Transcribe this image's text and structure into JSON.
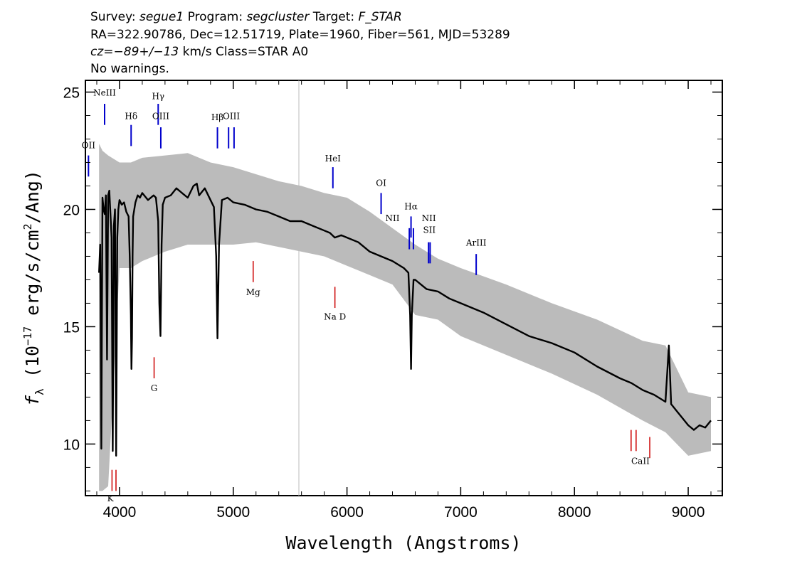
{
  "header": {
    "line1": {
      "survey_label": "Survey: ",
      "survey": "segue1",
      "program_label": " Program: ",
      "program": "segcluster",
      "target_label": " Target: ",
      "target": "F_STAR"
    },
    "line2": "RA=322.90786, Dec=12.51719, Plate=1960, Fiber=561, MJD=53289",
    "line3": {
      "cz_prefix": "cz=",
      "cz_value": "−89+/−13",
      "cz_suffix": " km/s Class=STAR A0"
    },
    "line4": "No warnings."
  },
  "chart_data": {
    "type": "line",
    "xlabel": "Wavelength (Angstroms)",
    "ylabel": "fλ (10⁻¹⁷ erg/s/cm²/Ang)",
    "ylabel_parts": {
      "f": "f",
      "lambda": "λ",
      "open": " (10",
      "exp": "−17",
      "mid": " erg/s/cm",
      "sq": "2",
      "close": "/Ang)"
    },
    "xlim": [
      3700,
      9300
    ],
    "ylim": [
      7.8,
      25.5
    ],
    "xticks": [
      4000,
      5000,
      6000,
      7000,
      8000,
      9000
    ],
    "yticks": [
      10,
      15,
      20,
      25
    ],
    "grid": false,
    "series": [
      {
        "role": "flux",
        "color": "#000000",
        "x": [
          3820,
          3830,
          3840,
          3850,
          3860,
          3870,
          3880,
          3890,
          3900,
          3910,
          3920,
          3930,
          3940,
          3950,
          3960,
          3970,
          3980,
          3990,
          4000,
          4020,
          4040,
          4060,
          4080,
          4090,
          4100,
          4105,
          4110,
          4115,
          4120,
          4140,
          4160,
          4180,
          4200,
          4250,
          4300,
          4320,
          4340,
          4350,
          4360,
          4370,
          4380,
          4400,
          4450,
          4500,
          4550,
          4600,
          4650,
          4680,
          4700,
          4750,
          4800,
          4830,
          4850,
          4861,
          4875,
          4900,
          4950,
          5000,
          5100,
          5200,
          5300,
          5400,
          5500,
          5600,
          5700,
          5800,
          5850,
          5893,
          5950,
          6000,
          6100,
          6200,
          6300,
          6400,
          6500,
          6540,
          6555,
          6563,
          6570,
          6585,
          6600,
          6650,
          6700,
          6800,
          6900,
          7000,
          7200,
          7400,
          7600,
          7800,
          8000,
          8200,
          8400,
          8500,
          8600,
          8700,
          8800,
          8830,
          8850,
          8900,
          9000,
          9050,
          9100,
          9150,
          9200
        ],
        "y": [
          17.3,
          18.5,
          9.8,
          20.5,
          20.0,
          19.8,
          20.6,
          13.6,
          20.6,
          20.8,
          19.8,
          18.8,
          9.7,
          19.3,
          20.0,
          9.5,
          18.8,
          20.0,
          20.4,
          20.2,
          20.3,
          19.9,
          19.7,
          18.0,
          15.5,
          13.2,
          14.5,
          18.0,
          19.7,
          20.3,
          20.6,
          20.5,
          20.7,
          20.4,
          20.6,
          20.5,
          19.5,
          16.0,
          14.6,
          18.5,
          20.2,
          20.5,
          20.6,
          20.9,
          20.7,
          20.5,
          21.0,
          21.1,
          20.6,
          20.9,
          20.4,
          20.1,
          18.0,
          14.5,
          18.5,
          20.4,
          20.5,
          20.3,
          20.2,
          20.0,
          19.9,
          19.7,
          19.5,
          19.5,
          19.3,
          19.1,
          19.0,
          18.8,
          18.9,
          18.8,
          18.6,
          18.2,
          18.0,
          17.8,
          17.5,
          17.3,
          15.5,
          13.2,
          15.5,
          17.0,
          17.0,
          16.8,
          16.6,
          16.5,
          16.2,
          16.0,
          15.6,
          15.1,
          14.6,
          14.3,
          13.9,
          13.3,
          12.8,
          12.6,
          12.3,
          12.1,
          11.8,
          14.2,
          11.7,
          11.4,
          10.8,
          10.6,
          10.8,
          10.7,
          11.0
        ]
      },
      {
        "role": "error-envelope",
        "color": "#bbbbbb",
        "x": [
          3820,
          3850,
          3900,
          4000,
          4100,
          4200,
          4400,
          4600,
          4800,
          5000,
          5200,
          5400,
          5600,
          5800,
          6000,
          6200,
          6400,
          6600,
          6800,
          7000,
          7400,
          7800,
          8200,
          8600,
          8800,
          9000,
          9200
        ],
        "y_low": [
          8.0,
          8.0,
          8.2,
          17.5,
          17.5,
          17.8,
          18.2,
          18.5,
          18.5,
          18.5,
          18.6,
          18.4,
          18.2,
          18.0,
          17.6,
          17.2,
          16.8,
          15.5,
          15.3,
          14.6,
          13.8,
          13.0,
          12.1,
          11.0,
          10.5,
          9.5,
          9.7
        ],
        "y_high": [
          22.8,
          22.5,
          22.3,
          22.0,
          22.0,
          22.2,
          22.3,
          22.4,
          22.0,
          21.8,
          21.5,
          21.2,
          21.0,
          20.7,
          20.5,
          19.9,
          19.2,
          18.5,
          17.9,
          17.5,
          16.8,
          16.0,
          15.3,
          14.4,
          14.2,
          12.2,
          12.0
        ]
      }
    ],
    "emission_lines": [
      {
        "name": "OII",
        "wave": 3727,
        "y_bottom": 21.4,
        "y_top": 22.3
      },
      {
        "name": "NeIII",
        "wave": 3869,
        "y_bottom": 23.6,
        "y_top": 24.5
      },
      {
        "name": "Hδ",
        "wave": 4102,
        "y_bottom": 22.7,
        "y_top": 23.6
      },
      {
        "name": "Hγ",
        "wave": 4340,
        "y_bottom": 23.6,
        "y_top": 24.5
      },
      {
        "name": "OIII",
        "wave": 4363,
        "y_bottom": 22.6,
        "y_top": 23.5
      },
      {
        "name": "Hβ",
        "wave": 4861,
        "y_bottom": 22.6,
        "y_top": 23.5
      },
      {
        "name": "OIII",
        "wave": 4959,
        "y_bottom": 22.6,
        "y_top": 23.5
      },
      {
        "name": "OIII",
        "wave": 5007,
        "y_bottom": 22.6,
        "y_top": 23.5
      },
      {
        "name": "HeI",
        "wave": 5876,
        "y_bottom": 20.9,
        "y_top": 21.8
      },
      {
        "name": "OI",
        "wave": 6300,
        "y_bottom": 19.8,
        "y_top": 20.7
      },
      {
        "name": "NII",
        "wave": 6548,
        "y_bottom": 18.3,
        "y_top": 19.2
      },
      {
        "name": "Hα",
        "wave": 6563,
        "y_bottom": 18.8,
        "y_top": 19.7
      },
      {
        "name": "NII",
        "wave": 6584,
        "y_bottom": 18.3,
        "y_top": 19.2
      },
      {
        "name": "SII",
        "wave": 6717,
        "y_bottom": 17.7,
        "y_top": 18.6
      },
      {
        "name": "SII",
        "wave": 6731,
        "y_bottom": 17.7,
        "y_top": 18.6
      },
      {
        "name": "ArIII",
        "wave": 7136,
        "y_bottom": 17.2,
        "y_top": 18.1
      }
    ],
    "absorption_lines": [
      {
        "name": "K",
        "wave": 3934,
        "y_bottom": 8.0,
        "y_top": 8.9
      },
      {
        "name": "H",
        "wave": 3969,
        "y_bottom": 8.0,
        "y_top": 8.9
      },
      {
        "name": "G",
        "wave": 4304,
        "y_bottom": 12.8,
        "y_top": 13.7
      },
      {
        "name": "Mg",
        "wave": 5175,
        "y_bottom": 16.9,
        "y_top": 17.8
      },
      {
        "name": "Na D",
        "wave": 5894,
        "y_bottom": 15.8,
        "y_top": 16.7
      },
      {
        "name": "CaII",
        "wave": 8498,
        "y_bottom": 9.7,
        "y_top": 10.6
      },
      {
        "name": "CaII",
        "wave": 8542,
        "y_bottom": 9.7,
        "y_top": 10.6
      },
      {
        "name": "CaII",
        "wave": 8662,
        "y_bottom": 9.4,
        "y_top": 10.3
      }
    ],
    "line_labels": [
      {
        "text": "OII",
        "wave": 3727,
        "y": 22.6,
        "kind": "emission"
      },
      {
        "text": "NeIII",
        "wave": 3869,
        "y": 24.85,
        "kind": "emission"
      },
      {
        "text": "Hδ",
        "wave": 4102,
        "y": 23.85,
        "kind": "emission"
      },
      {
        "text": "Hγ",
        "wave": 4340,
        "y": 24.7,
        "kind": "emission"
      },
      {
        "text": "OIII",
        "wave": 4363,
        "y": 23.85,
        "kind": "emission"
      },
      {
        "text": "Hβ",
        "wave": 4861,
        "y": 23.8,
        "kind": "emission"
      },
      {
        "text": "OIII",
        "wave": 4983,
        "y": 23.85,
        "kind": "emission"
      },
      {
        "text": "HeI",
        "wave": 5876,
        "y": 22.05,
        "kind": "emission"
      },
      {
        "text": "OI",
        "wave": 6300,
        "y": 21.0,
        "kind": "emission"
      },
      {
        "text": "NII",
        "wave": 6400,
        "y": 19.5,
        "kind": "emission"
      },
      {
        "text": "Hα",
        "wave": 6563,
        "y": 20.0,
        "kind": "emission"
      },
      {
        "text": "NII",
        "wave": 6720,
        "y": 19.5,
        "kind": "emission"
      },
      {
        "text": "SII",
        "wave": 6724,
        "y": 19.0,
        "kind": "emission"
      },
      {
        "text": "ArIII",
        "wave": 7136,
        "y": 18.45,
        "kind": "emission"
      },
      {
        "text": "K",
        "wave": 3920,
        "y": 7.55,
        "kind": "absorption"
      },
      {
        "text": "Mg",
        "wave": 5175,
        "y": 16.35,
        "kind": "absorption"
      },
      {
        "text": "Na  D",
        "wave": 5894,
        "y": 15.3,
        "kind": "absorption"
      },
      {
        "text": "G",
        "wave": 4304,
        "y": 12.25,
        "kind": "absorption"
      },
      {
        "text": "CaII",
        "wave": 8580,
        "y": 9.15,
        "kind": "absorption"
      }
    ],
    "colors": {
      "flux": "#000000",
      "error": "#bbbbbb",
      "emission": "#0000cc",
      "absorption": "#cc0000"
    }
  }
}
